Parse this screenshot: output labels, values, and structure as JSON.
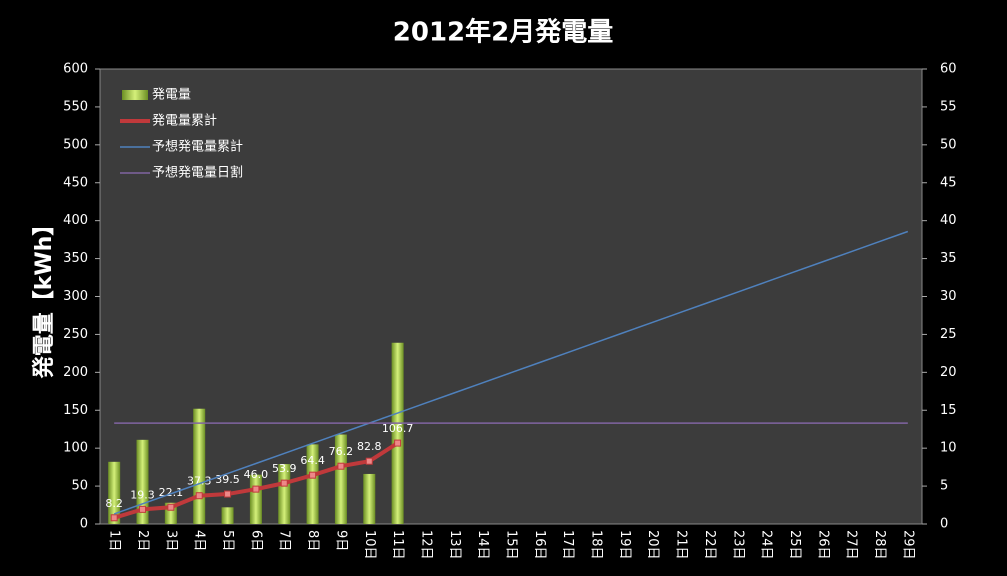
{
  "chart_data": {
    "type": "bar",
    "title": "2012年2月発電量",
    "y_label": "発電量【kWh】",
    "categories": [
      "1日",
      "2日",
      "3日",
      "4日",
      "5日",
      "6日",
      "7日",
      "8日",
      "9日",
      "10日",
      "11日",
      "12日",
      "13日",
      "14日",
      "15日",
      "16日",
      "17日",
      "18日",
      "19日",
      "20日",
      "21日",
      "22日",
      "23日",
      "24日",
      "25日",
      "26日",
      "27日",
      "28日",
      "29日"
    ],
    "series": [
      {
        "name": "発電量",
        "type": "bar",
        "axis": "y2",
        "color": "#9acd32",
        "values": [
          8.2,
          11.1,
          2.8,
          15.2,
          2.2,
          6.5,
          7.9,
          10.5,
          11.8,
          6.6,
          23.9,
          null,
          null,
          null,
          null,
          null,
          null,
          null,
          null,
          null,
          null,
          null,
          null,
          null,
          null,
          null,
          null,
          null,
          null
        ]
      },
      {
        "name": "発電量累計",
        "type": "line",
        "color": "#c0393b",
        "values": [
          8.2,
          19.3,
          22.1,
          37.3,
          39.5,
          46.0,
          53.9,
          64.4,
          76.2,
          82.8,
          106.7,
          null,
          null,
          null,
          null,
          null,
          null,
          null,
          null,
          null,
          null,
          null,
          null,
          null,
          null,
          null,
          null,
          null,
          null
        ],
        "value_labels": [
          "8.2",
          "19.3",
          "22.1",
          "37.3",
          "39.5",
          "46.0",
          "53.9",
          "64.4",
          "76.2",
          "82.8",
          "106.7",
          null,
          null,
          null,
          null,
          null,
          null,
          null,
          null,
          null,
          null,
          null,
          null,
          null,
          null,
          null,
          null,
          null,
          null
        ]
      },
      {
        "name": "予想発電量累計",
        "type": "line",
        "color": "#4f81bd",
        "values": [
          13.3,
          26.6,
          39.9,
          53.2,
          66.5,
          79.8,
          93.1,
          106.4,
          119.7,
          133,
          146.3,
          159.6,
          172.9,
          186.2,
          199.5,
          212.8,
          226.1,
          239.4,
          252.7,
          266,
          279.3,
          292.6,
          305.9,
          319.2,
          332.5,
          345.8,
          359.1,
          372.4,
          385.7
        ]
      },
      {
        "name": "予想発電量日割",
        "type": "line",
        "axis": "y2",
        "color": "#8064a2",
        "values": [
          13.3,
          13.3,
          13.3,
          13.3,
          13.3,
          13.3,
          13.3,
          13.3,
          13.3,
          13.3,
          13.3,
          13.3,
          13.3,
          13.3,
          13.3,
          13.3,
          13.3,
          13.3,
          13.3,
          13.3,
          13.3,
          13.3,
          13.3,
          13.3,
          13.3,
          13.3,
          13.3,
          13.3,
          13.3
        ]
      }
    ],
    "ylim": [
      0,
      600
    ],
    "yticks": [
      0,
      50,
      100,
      150,
      200,
      250,
      300,
      350,
      400,
      450,
      500,
      550,
      600
    ],
    "y2lim": [
      0,
      60
    ],
    "y2ticks": [
      0,
      5,
      10,
      15,
      20,
      25,
      30,
      35,
      40,
      45,
      50,
      55,
      60
    ],
    "legend": "upper-left"
  }
}
